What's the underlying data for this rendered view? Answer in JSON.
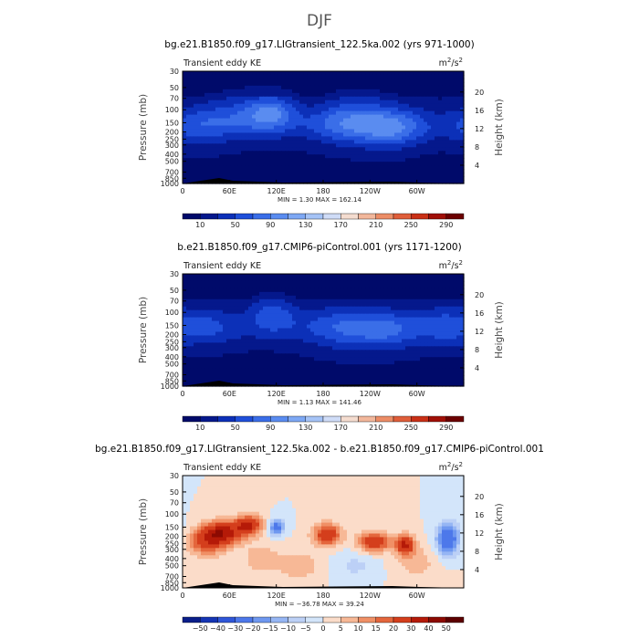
{
  "figure_title": "DJF",
  "chart_data": [
    {
      "type": "heatmap",
      "title": "bg.e21.B1850.f09_g17.LIGtransient_122.5ka.002 (yrs 971-1000)",
      "panel_label": "Transient eddy KE",
      "units": "m²/s²",
      "units_base": "m",
      "units_num_exp": "2",
      "units_den": "/s",
      "units_den_exp": "2",
      "ylabel": "Pressure (mb)",
      "ylabel_right": "Height (km)",
      "x_ticks": [
        "0",
        "60E",
        "120E",
        "180",
        "120W",
        "60W"
      ],
      "x_tick_lons": [
        0,
        60,
        120,
        180,
        240,
        300
      ],
      "xlim": [
        0,
        360
      ],
      "y_ticks": [
        "30",
        "50",
        "70",
        "100",
        "150",
        "200",
        "250",
        "300",
        "400",
        "500",
        "700",
        "850",
        "1000"
      ],
      "y_tick_p": [
        30,
        50,
        70,
        100,
        150,
        200,
        250,
        300,
        400,
        500,
        700,
        850,
        1000
      ],
      "ylim_p": [
        30,
        1000
      ],
      "height_ticks": [
        "4",
        "8",
        "12",
        "16",
        "20"
      ],
      "height_tick_km": [
        4,
        8,
        12,
        16,
        20
      ],
      "min_max": "MIN =      1.30   MAX = 162.14",
      "min": 1.3,
      "max": 162.14,
      "colorbar_labels": [
        "10",
        "50",
        "90",
        "130",
        "170",
        "210",
        "250",
        "290"
      ],
      "colorbar_label_values": [
        10,
        50,
        90,
        130,
        170,
        210,
        250,
        290
      ],
      "levels": [
        10,
        30,
        50,
        70,
        90,
        110,
        130,
        150,
        170,
        190,
        210,
        230,
        250,
        270,
        290
      ],
      "colormap": "blue-white-red",
      "features": [
        {
          "lon": 115,
          "p": 105,
          "sx": 30,
          "sz": 0.55,
          "a": 60
        },
        {
          "lon": 75,
          "p": 115,
          "sx": 45,
          "sz": 0.7,
          "a": 38
        },
        {
          "lon": 20,
          "p": 170,
          "sx": 35,
          "sz": 0.7,
          "a": 30
        },
        {
          "lon": 210,
          "p": 150,
          "sx": 45,
          "sz": 0.7,
          "a": 40
        },
        {
          "lon": 270,
          "p": 185,
          "sx": 40,
          "sz": 0.6,
          "a": 52
        },
        {
          "lon": 235,
          "p": 125,
          "sx": 55,
          "sz": 0.8,
          "a": 25
        }
      ]
    },
    {
      "type": "heatmap",
      "title": "b.e21.B1850.f09_g17.CMIP6-piControl.001 (yrs 1171-1200)",
      "panel_label": "Transient eddy KE",
      "units": "m²/s²",
      "units_base": "m",
      "units_num_exp": "2",
      "units_den": "/s",
      "units_den_exp": "2",
      "ylabel": "Pressure (mb)",
      "ylabel_right": "Height (km)",
      "x_ticks": [
        "0",
        "60E",
        "120E",
        "180",
        "120W",
        "60W"
      ],
      "x_tick_lons": [
        0,
        60,
        120,
        180,
        240,
        300
      ],
      "xlim": [
        0,
        360
      ],
      "y_ticks": [
        "30",
        "50",
        "70",
        "100",
        "150",
        "200",
        "250",
        "300",
        "400",
        "500",
        "700",
        "850",
        "1000"
      ],
      "y_tick_p": [
        30,
        50,
        70,
        100,
        150,
        200,
        250,
        300,
        400,
        500,
        700,
        850,
        1000
      ],
      "ylim_p": [
        30,
        1000
      ],
      "height_ticks": [
        "4",
        "8",
        "12",
        "16",
        "20"
      ],
      "height_tick_km": [
        4,
        8,
        12,
        16,
        20
      ],
      "min_max": "MIN =      1.13   MAX = 141.46",
      "min": 1.13,
      "max": 141.46,
      "colorbar_labels": [
        "10",
        "50",
        "90",
        "130",
        "170",
        "210",
        "250",
        "290"
      ],
      "colorbar_label_values": [
        10,
        50,
        90,
        130,
        170,
        210,
        250,
        290
      ],
      "levels": [
        10,
        30,
        50,
        70,
        90,
        110,
        130,
        150,
        170,
        190,
        210,
        230,
        250,
        270,
        290
      ],
      "colormap": "blue-white-red",
      "features": [
        {
          "lon": 115,
          "p": 100,
          "sx": 30,
          "sz": 0.55,
          "a": 45
        },
        {
          "lon": 30,
          "p": 150,
          "sx": 35,
          "sz": 0.7,
          "a": 25
        },
        {
          "lon": 210,
          "p": 160,
          "sx": 50,
          "sz": 0.75,
          "a": 40
        },
        {
          "lon": 265,
          "p": 180,
          "sx": 40,
          "sz": 0.65,
          "a": 35
        },
        {
          "lon": 335,
          "p": 150,
          "sx": 35,
          "sz": 0.7,
          "a": 30
        }
      ]
    },
    {
      "type": "heatmap",
      "title": "bg.e21.B1850.f09_g17.LIGtransient_122.5ka.002 - b.e21.B1850.f09_g17.CMIP6-piControl.001",
      "panel_label": "Transient eddy KE",
      "units": "m²/s²",
      "units_base": "m",
      "units_num_exp": "2",
      "units_den": "/s",
      "units_den_exp": "2",
      "ylabel": "Pressure (mb)",
      "ylabel_right": "Height (km)",
      "x_ticks": [
        "0",
        "60E",
        "120E",
        "180",
        "120W",
        "60W"
      ],
      "x_tick_lons": [
        0,
        60,
        120,
        180,
        240,
        300
      ],
      "xlim": [
        0,
        360
      ],
      "y_ticks": [
        "30",
        "50",
        "70",
        "100",
        "150",
        "200",
        "250",
        "300",
        "400",
        "500",
        "700",
        "850",
        "1000"
      ],
      "y_tick_p": [
        30,
        50,
        70,
        100,
        150,
        200,
        250,
        300,
        400,
        500,
        700,
        850,
        1000
      ],
      "ylim_p": [
        30,
        1000
      ],
      "height_ticks": [
        "4",
        "8",
        "12",
        "16",
        "20"
      ],
      "height_tick_km": [
        4,
        8,
        12,
        16,
        20
      ],
      "min_max": "MIN =  −36.78   MAX =   39.24",
      "min": -36.78,
      "max": 39.24,
      "colorbar_labels": [
        "−50",
        "−40",
        "−30",
        "−20",
        "−15",
        "−10",
        "−5",
        "0",
        "5",
        "10",
        "15",
        "20",
        "30",
        "40",
        "50"
      ],
      "colorbar_label_values": [
        -50,
        -40,
        -30,
        -20,
        -15,
        -10,
        -5,
        0,
        5,
        10,
        15,
        20,
        30,
        40,
        50
      ],
      "levels": [
        -50,
        -40,
        -30,
        -20,
        -15,
        -10,
        -5,
        0,
        5,
        10,
        15,
        20,
        30,
        40,
        50
      ],
      "colormap": "blue-white-red-diverging",
      "features": [
        {
          "lon": 50,
          "p": 180,
          "sx": 25,
          "sz": 0.35,
          "a": 36
        },
        {
          "lon": 85,
          "p": 140,
          "sx": 18,
          "sz": 0.3,
          "a": 30
        },
        {
          "lon": 30,
          "p": 250,
          "sx": 25,
          "sz": 0.4,
          "a": 20
        },
        {
          "lon": 120,
          "p": 150,
          "sx": 10,
          "sz": 0.25,
          "a": -25
        },
        {
          "lon": 185,
          "p": 190,
          "sx": 18,
          "sz": 0.35,
          "a": 28
        },
        {
          "lon": 245,
          "p": 240,
          "sx": 20,
          "sz": 0.3,
          "a": 30
        },
        {
          "lon": 285,
          "p": 260,
          "sx": 12,
          "sz": 0.3,
          "a": 30
        },
        {
          "lon": 340,
          "p": 220,
          "sx": 15,
          "sz": 0.5,
          "a": -30
        },
        {
          "lon": 150,
          "p": 500,
          "sx": 30,
          "sz": 0.5,
          "a": 8
        },
        {
          "lon": 220,
          "p": 500,
          "sx": 30,
          "sz": 0.5,
          "a": -6
        },
        {
          "lon": 300,
          "p": 450,
          "sx": 30,
          "sz": 0.6,
          "a": 7
        },
        {
          "lon": 100,
          "p": 400,
          "sx": 25,
          "sz": 0.5,
          "a": 8
        }
      ]
    }
  ]
}
